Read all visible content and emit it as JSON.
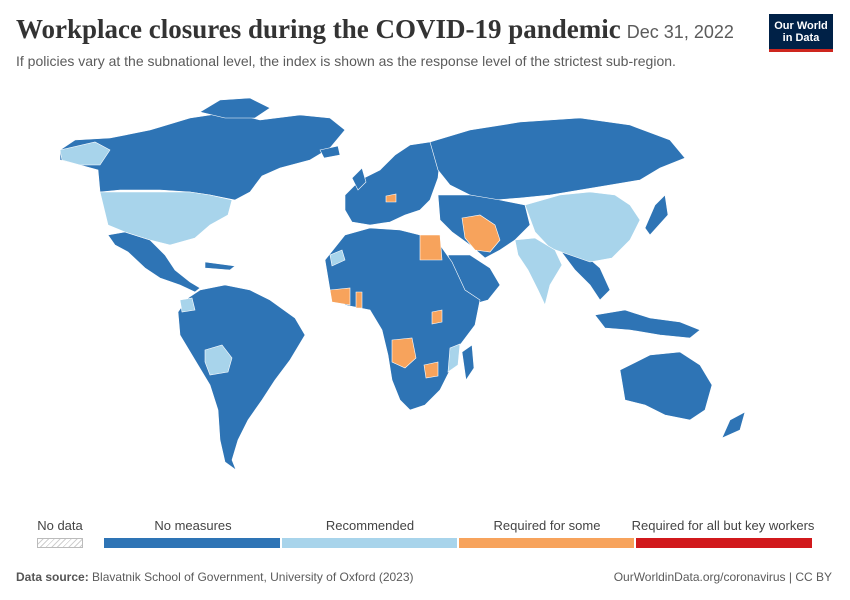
{
  "header": {
    "title": "Workplace closures during the COVID-19 pandemic",
    "date": "Dec 31, 2022",
    "subtitle": "If policies vary at the subnational level, the index is shown as the response level of the strictest sub-region."
  },
  "logo": {
    "line1": "Our World",
    "line2": "in Data",
    "bg": "#002147",
    "accent": "#ce261e"
  },
  "legend": {
    "no_data_label": "No data",
    "categories": [
      {
        "label": "No measures",
        "color": "#2e74b5"
      },
      {
        "label": "Recommended",
        "color": "#a8d4eb"
      },
      {
        "label": "Required for some",
        "color": "#f7a35c"
      },
      {
        "label": "Required for all but key workers",
        "color": "#d1191c"
      }
    ]
  },
  "map_colors": {
    "no_measures": "#2e74b5",
    "recommended": "#a8d4eb",
    "required_some": "#f7a35c",
    "required_all": "#d1191c",
    "no_data": "#e8e8e8"
  },
  "regions": {
    "no_measures": [
      "Canada",
      "Mexico",
      "Brazil",
      "Argentina",
      "Colombia",
      "Peru",
      "Russia",
      "Australia",
      "Indonesia",
      "Kazakhstan",
      "Pakistan",
      "Saudi Arabia",
      "Algeria",
      "Nigeria",
      "South Africa",
      "Sweden",
      "Norway"
    ],
    "recommended": [
      "United States",
      "China",
      "India",
      "Greenland",
      "Bolivia",
      "Western Sahara",
      "Mozambique",
      "Italy",
      "Ecuador"
    ],
    "required_some": [
      "Iran",
      "Egypt",
      "Angola",
      "Zimbabwe",
      "Ivory Coast",
      "Sierra Leone",
      "Guinea",
      "Malawi",
      "Togo",
      "Libya (part)"
    ]
  },
  "footer": {
    "source_label": "Data source:",
    "source_text": "Blavatnik School of Government, University of Oxford (2023)",
    "url": "OurWorldinData.org/coronavirus | CC BY"
  }
}
